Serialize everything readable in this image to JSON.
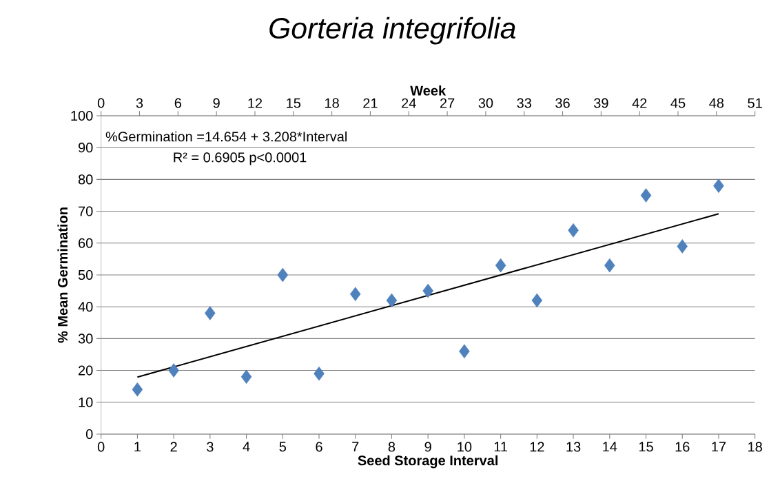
{
  "chart_data": {
    "type": "scatter",
    "title": "Gorteria integrifolia",
    "xlabel": "Seed Storage Interval",
    "ylabel": "% Mean Germination",
    "x2label": "Week",
    "annotations": [
      "%Germination =14.654 + 3.208*Interval",
      "R² = 0.6905 p<0.0001"
    ],
    "x": [
      1,
      2,
      3,
      4,
      5,
      6,
      7,
      8,
      9,
      10,
      11,
      12,
      13,
      14,
      15,
      16,
      17
    ],
    "series": [
      {
        "color": "#4f81bd",
        "values": [
          14,
          20,
          38,
          18,
          50,
          19,
          44,
          42,
          45,
          26,
          53,
          42,
          64,
          53,
          75,
          59,
          78
        ]
      },
      {
        "type": "line",
        "color": "#000000",
        "marker": "none",
        "x": [
          1,
          17
        ],
        "values": [
          17.9,
          69.2
        ]
      }
    ],
    "xlim": [
      0,
      18
    ],
    "xticks": [
      0,
      1,
      2,
      3,
      4,
      5,
      6,
      7,
      8,
      9,
      10,
      11,
      12,
      13,
      14,
      15,
      16,
      17,
      18
    ],
    "x2lim": [
      0,
      51
    ],
    "x2ticks": [
      0,
      3,
      6,
      9,
      12,
      15,
      18,
      21,
      24,
      27,
      30,
      33,
      36,
      39,
      42,
      45,
      48,
      51
    ],
    "ylim": [
      0,
      100
    ],
    "yticks": [
      0,
      10,
      20,
      30,
      40,
      50,
      60,
      70,
      80,
      90,
      100
    ],
    "grid": "y",
    "marker": "diamond",
    "line_style": "solid"
  }
}
